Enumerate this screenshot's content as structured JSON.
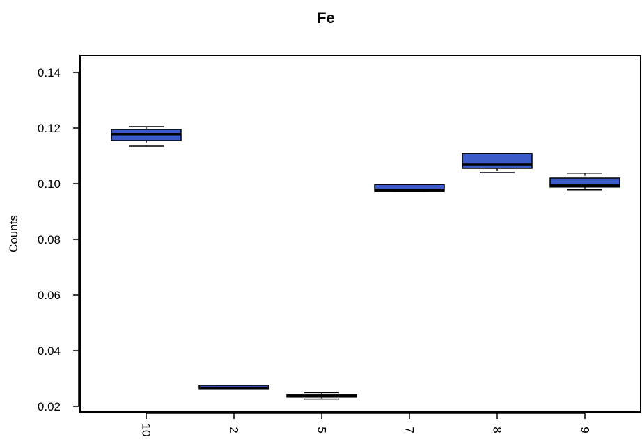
{
  "chart_data": {
    "type": "box",
    "title": "Fe",
    "xlabel": "",
    "ylabel": "Counts",
    "ylim": [
      0.018,
      0.146
    ],
    "y_ticks": [
      "0.02",
      "0.04",
      "0.06",
      "0.08",
      "0.10",
      "0.12",
      "0.14"
    ],
    "categories": [
      "10",
      "2",
      "5",
      "7",
      "8",
      "9"
    ],
    "boxes": [
      {
        "category": "10",
        "whisker_low": 0.1135,
        "q1": 0.1155,
        "median": 0.1178,
        "q3": 0.1195,
        "whisker_high": 0.1205
      },
      {
        "category": "2",
        "whisker_low": 0.0263,
        "q1": 0.0263,
        "median": 0.0266,
        "q3": 0.0275,
        "whisker_high": 0.0275
      },
      {
        "category": "5",
        "whisker_low": 0.0226,
        "q1": 0.0233,
        "median": 0.0238,
        "q3": 0.0243,
        "whisker_high": 0.0249
      },
      {
        "category": "7",
        "whisker_low": 0.0972,
        "q1": 0.0972,
        "median": 0.0978,
        "q3": 0.0997,
        "whisker_high": 0.0997
      },
      {
        "category": "8",
        "whisker_low": 0.104,
        "q1": 0.1055,
        "median": 0.107,
        "q3": 0.1108,
        "whisker_high": 0.1108
      },
      {
        "category": "9",
        "whisker_low": 0.0978,
        "q1": 0.0988,
        "median": 0.0993,
        "q3": 0.102,
        "whisker_high": 0.1038
      }
    ],
    "box_color": "#3b5bc9",
    "grid": false,
    "legend": "none"
  }
}
